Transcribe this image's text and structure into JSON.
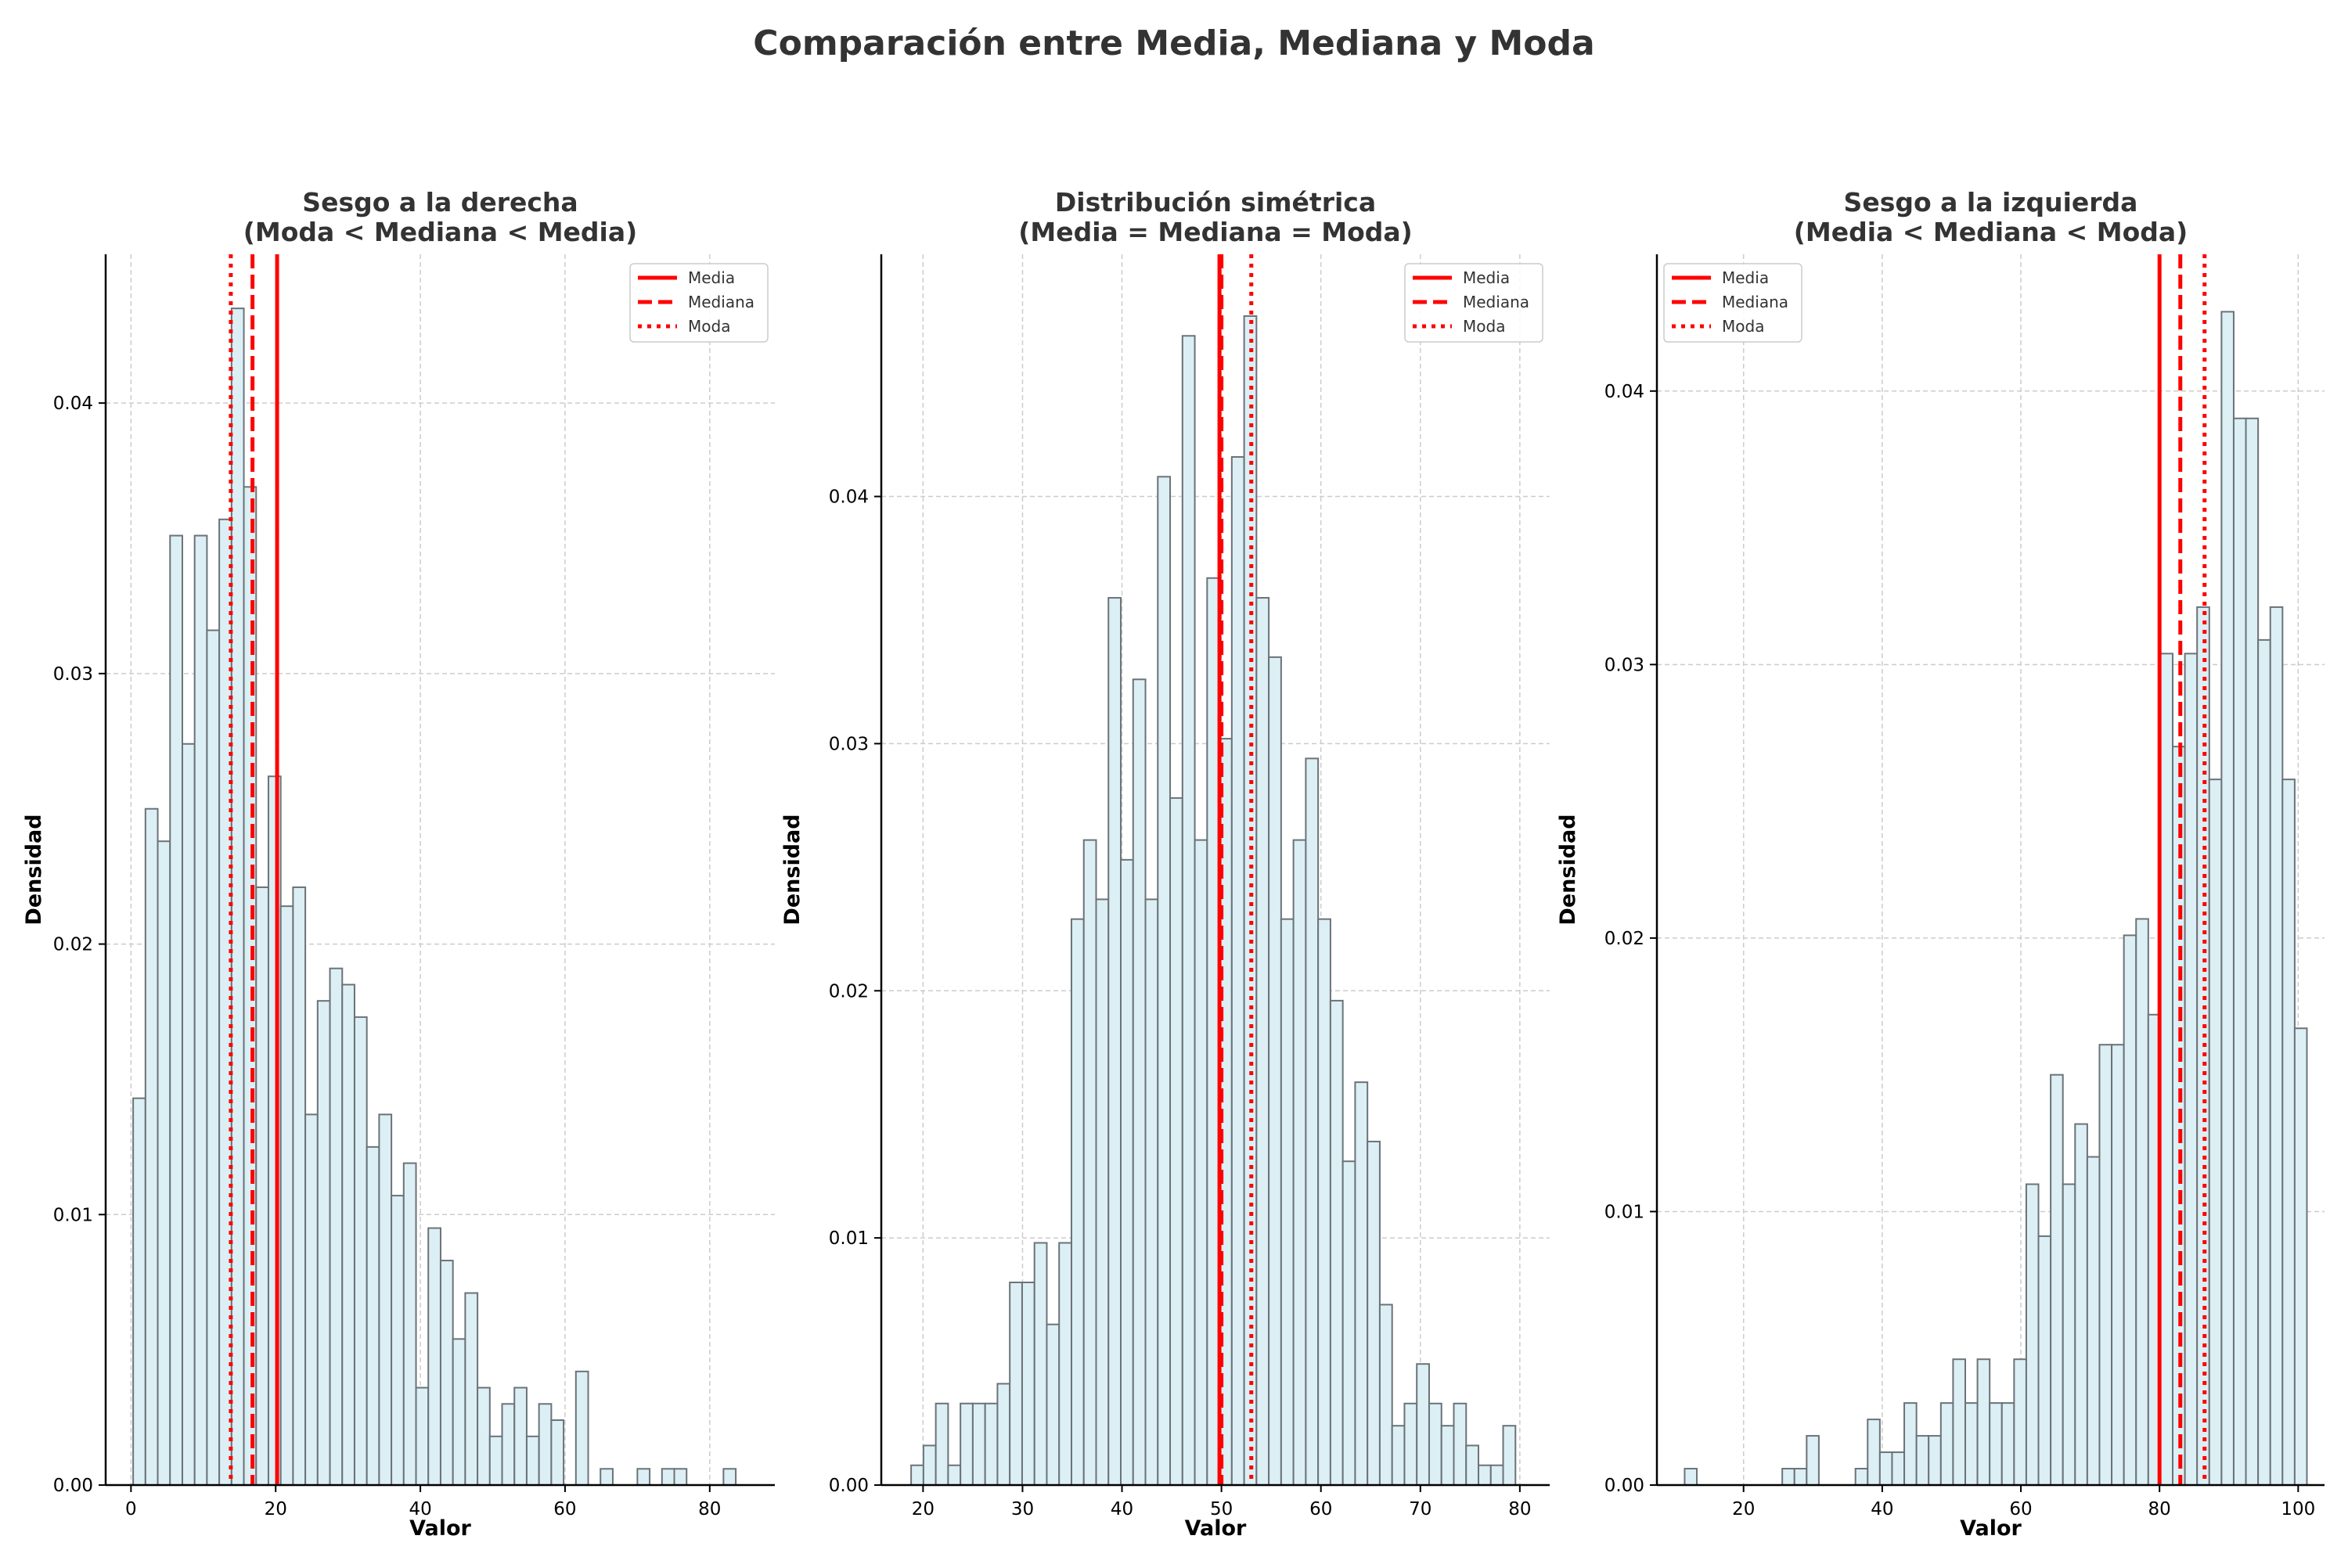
{
  "suptitle": "Comparación entre Media, Mediana y Moda",
  "colors": {
    "bar_fill": "#dceff5",
    "bar_edge": "#6b7378",
    "line": "#ff0000",
    "grid": "#cccccc",
    "text": "#333333"
  },
  "legend_labels": [
    "Media",
    "Mediana",
    "Moda"
  ],
  "chart_data": [
    {
      "type": "bar",
      "title": "Sesgo a la derecha",
      "subtitle": "(Moda < Mediana < Media)",
      "xlabel": "Valor",
      "ylabel": "Densidad",
      "xlim": [
        -3.5,
        89
      ],
      "ylim": [
        0,
        0.0455
      ],
      "xticks": [
        0,
        20,
        40,
        60,
        80
      ],
      "yticks": [
        0.0,
        0.01,
        0.02,
        0.03,
        0.04
      ],
      "ytick_labels": [
        "0.00",
        "0.01",
        "0.02",
        "0.03",
        "0.04"
      ],
      "legend_position": "top-right",
      "bin_start": 0.3,
      "bin_width": 1.7,
      "values": [
        0.0143,
        0.025,
        0.0238,
        0.0351,
        0.0274,
        0.0351,
        0.0316,
        0.0357,
        0.0435,
        0.0369,
        0.0221,
        0.0262,
        0.0214,
        0.0221,
        0.0137,
        0.0179,
        0.0191,
        0.0185,
        0.0173,
        0.0125,
        0.0137,
        0.0107,
        0.0119,
        0.0036,
        0.0095,
        0.0083,
        0.0054,
        0.0071,
        0.0036,
        0.0018,
        0.003,
        0.0036,
        0.0018,
        0.003,
        0.0024,
        0,
        0.0042,
        0,
        0.0006,
        0,
        0,
        0.0006,
        0,
        0.0006,
        0.0006,
        0,
        0,
        0,
        0.0006
      ],
      "mean": 20.2,
      "median": 16.8,
      "mode": 13.8
    },
    {
      "type": "bar",
      "title": "Distribución simétrica",
      "subtitle": "(Media = Mediana = Moda)",
      "xlabel": "Valor",
      "ylabel": "Densidad",
      "xlim": [
        15.8,
        83
      ],
      "ylim": [
        0,
        0.0498
      ],
      "xticks": [
        20,
        30,
        40,
        50,
        60,
        70,
        80
      ],
      "yticks": [
        0.0,
        0.01,
        0.02,
        0.03,
        0.04
      ],
      "ytick_labels": [
        "0.00",
        "0.01",
        "0.02",
        "0.03",
        "0.04"
      ],
      "legend_position": "top-right",
      "bin_start": 18.8,
      "bin_width": 1.24,
      "values": [
        0.0008,
        0.0016,
        0.0033,
        0.0008,
        0.0033,
        0.0033,
        0.0033,
        0.0041,
        0.0082,
        0.0082,
        0.0098,
        0.0065,
        0.0098,
        0.0229,
        0.0261,
        0.0237,
        0.0359,
        0.0253,
        0.0326,
        0.0237,
        0.0408,
        0.0278,
        0.0465,
        0.0261,
        0.0367,
        0.0302,
        0.0416,
        0.0473,
        0.0359,
        0.0335,
        0.0229,
        0.0261,
        0.0294,
        0.0229,
        0.0196,
        0.0131,
        0.0163,
        0.0139,
        0.0073,
        0.0024,
        0.0033,
        0.0049,
        0.0033,
        0.0024,
        0.0033,
        0.0016,
        0.0008,
        0.0008,
        0.0024
      ],
      "mean": 49.8,
      "median": 50.0,
      "mode": 53.0
    },
    {
      "type": "bar",
      "title": "Sesgo a la izquierda",
      "subtitle": "(Media < Mediana < Moda)",
      "xlabel": "Valor",
      "ylabel": "Densidad",
      "xlim": [
        7.5,
        103.8
      ],
      "ylim": [
        0,
        0.045
      ],
      "xticks": [
        20,
        40,
        60,
        80,
        100
      ],
      "yticks": [
        0.0,
        0.01,
        0.02,
        0.03,
        0.04
      ],
      "ytick_labels": [
        "0.00",
        "0.01",
        "0.02",
        "0.03",
        "0.04"
      ],
      "legend_position": "top-left",
      "bin_start": 11.5,
      "bin_width": 1.76,
      "values": [
        0.0006,
        0,
        0,
        0,
        0,
        0,
        0,
        0,
        0.0006,
        0.0006,
        0.0018,
        0,
        0,
        0,
        0.0006,
        0.0024,
        0.0012,
        0.0012,
        0.003,
        0.0018,
        0.0018,
        0.003,
        0.0046,
        0.003,
        0.0046,
        0.003,
        0.003,
        0.0046,
        0.011,
        0.0091,
        0.015,
        0.011,
        0.0132,
        0.012,
        0.0161,
        0.0161,
        0.0201,
        0.0207,
        0.0172,
        0.0304,
        0.027,
        0.0304,
        0.0321,
        0.0258,
        0.0429,
        0.039,
        0.039,
        0.0309,
        0.0321,
        0.0258,
        0.0167
      ],
      "mean": 80.0,
      "median": 83.0,
      "mode": 86.5
    }
  ]
}
